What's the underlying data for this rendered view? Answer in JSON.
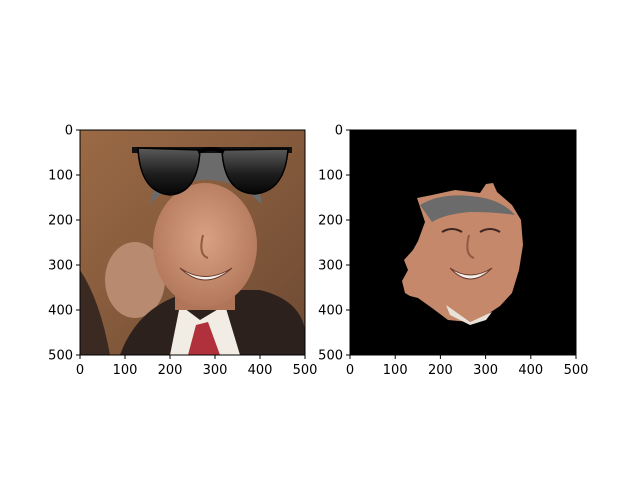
{
  "chart_data": [
    {
      "type": "image",
      "title": "",
      "xlabel": "",
      "ylabel": "",
      "xlim": [
        0,
        500
      ],
      "ylim": [
        500,
        0
      ],
      "y_inverted": true,
      "xticks": [
        0,
        100,
        200,
        300,
        400,
        500
      ],
      "yticks": [
        0,
        100,
        200,
        300,
        400,
        500
      ],
      "content": "face photo with sunglasses overlay"
    },
    {
      "type": "image",
      "title": "",
      "xlabel": "",
      "ylabel": "",
      "xlim": [
        0,
        500
      ],
      "ylim": [
        500,
        0
      ],
      "y_inverted": true,
      "xticks": [
        0,
        100,
        200,
        300,
        400,
        500
      ],
      "yticks": [
        0,
        100,
        200,
        300,
        400,
        500
      ],
      "content": "segmented face on black background"
    }
  ],
  "colors": {
    "photo_background": "#8a5b3a",
    "suit": "#2d211d",
    "skin": "#c98d70",
    "hair": "#6b6b6b",
    "tie": "#b0313b",
    "mask_background": "#000000",
    "axis": "#000000"
  }
}
